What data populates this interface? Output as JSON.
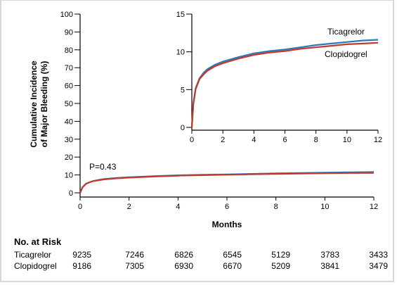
{
  "chart_data": [
    {
      "type": "line",
      "title": "",
      "xlabel": "Months",
      "ylabel": "Cumulative Incidence of Major Bleeding (%)",
      "xlim": [
        0,
        12
      ],
      "ylim": [
        0,
        100
      ],
      "xticks": [
        "0",
        "2",
        "4",
        "6",
        "8",
        "10",
        "12"
      ],
      "yticks": [
        "0",
        "10",
        "20",
        "30",
        "40",
        "50",
        "60",
        "70",
        "80",
        "90",
        "100"
      ],
      "annotation": "P=0.43",
      "series": [
        {
          "name": "Ticagrelor",
          "color": "#2a7ab8",
          "x": [
            0,
            0.1,
            0.25,
            0.5,
            0.75,
            1,
            1.5,
            2,
            3,
            4,
            5,
            6,
            7,
            8,
            9,
            10,
            11,
            12
          ],
          "y": [
            0,
            3.2,
            5.2,
            6.5,
            7.2,
            7.7,
            8.3,
            8.7,
            9.3,
            9.8,
            10.1,
            10.3,
            10.6,
            10.9,
            11.1,
            11.3,
            11.5,
            11.6
          ]
        },
        {
          "name": "Clopidogrel",
          "color": "#c0392b",
          "x": [
            0,
            0.1,
            0.25,
            0.5,
            0.75,
            1,
            1.5,
            2,
            3,
            4,
            5,
            6,
            7,
            8,
            9,
            10,
            11,
            12
          ],
          "y": [
            0,
            3.1,
            5.1,
            6.4,
            7.0,
            7.5,
            8.1,
            8.5,
            9.1,
            9.6,
            9.9,
            10.1,
            10.4,
            10.6,
            10.8,
            11.0,
            11.1,
            11.2
          ]
        }
      ]
    },
    {
      "type": "line",
      "title": "",
      "xlim": [
        0,
        12
      ],
      "ylim": [
        0,
        15
      ],
      "xticks": [
        "0",
        "2",
        "4",
        "6",
        "8",
        "10",
        "12"
      ],
      "yticks": [
        "0",
        "5",
        "10",
        "15"
      ],
      "series_labels": [
        "Ticagrelor",
        "Clopidogrel"
      ]
    }
  ],
  "risk_table": {
    "title": "No. at Risk",
    "rows": [
      {
        "name": "Ticagrelor",
        "values": [
          "9235",
          "7246",
          "6826",
          "6545",
          "5129",
          "3783",
          "3433"
        ]
      },
      {
        "name": "Clopidogrel",
        "values": [
          "9186",
          "7305",
          "6930",
          "6670",
          "5209",
          "3841",
          "3479"
        ]
      }
    ]
  }
}
